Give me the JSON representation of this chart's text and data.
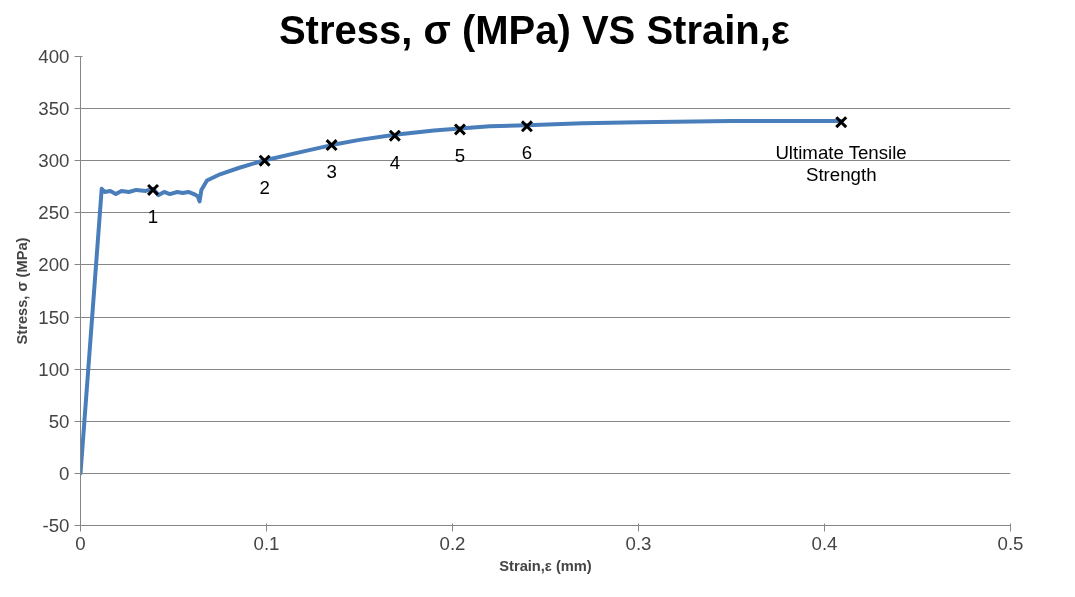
{
  "chart_data": {
    "type": "line",
    "title": "Stress, σ (MPa)  VS  Strain,ε",
    "xlabel": "Strain,ε (mm)",
    "ylabel": "Stress, σ (MPa)",
    "xlim": [
      0,
      0.5
    ],
    "ylim": [
      -50,
      400
    ],
    "xticks": [
      0,
      0.1,
      0.2,
      0.3,
      0.4,
      0.5
    ],
    "yticks": [
      -50,
      0,
      50,
      100,
      150,
      200,
      250,
      300,
      350,
      400
    ],
    "grid": "y",
    "line_style": "solid",
    "series": [
      {
        "color": "#4a7ebb",
        "marker": "none",
        "x": [
          0,
          0.0114,
          0.013,
          0.016,
          0.019,
          0.022,
          0.026,
          0.03,
          0.035,
          0.039,
          0.042,
          0.045,
          0.048,
          0.052,
          0.055,
          0.058,
          0.061,
          0.063,
          0.064,
          0.065,
          0.068,
          0.075,
          0.085,
          0.098,
          0.12,
          0.135,
          0.15,
          0.169,
          0.19,
          0.204,
          0.22,
          0.24,
          0.27,
          0.3,
          0.35,
          0.409
        ],
        "values": [
          0,
          273,
          270,
          271,
          268,
          271,
          270,
          272,
          271,
          273,
          267,
          270,
          268,
          270,
          269,
          270,
          268,
          266,
          261,
          272,
          281,
          287,
          293,
          300,
          309,
          315,
          320,
          325,
          329,
          331,
          333,
          334,
          336,
          337,
          338,
          338
        ]
      },
      {
        "type": "scatter",
        "color": "#000000",
        "marker": "cross",
        "x": [
          0.039,
          0.099,
          0.135,
          0.169,
          0.204,
          0.24,
          0.409
        ],
        "values": [
          272,
          300,
          315,
          324,
          330,
          333,
          337
        ]
      }
    ],
    "annotations": [
      {
        "text": "1",
        "x": 0.039,
        "y": 272
      },
      {
        "text": "2",
        "x": 0.099,
        "y": 300
      },
      {
        "text": "3",
        "x": 0.135,
        "y": 315
      },
      {
        "text": "4",
        "x": 0.169,
        "y": 324
      },
      {
        "text": "5",
        "x": 0.204,
        "y": 330
      },
      {
        "text": "6",
        "x": 0.24,
        "y": 333
      },
      {
        "text": "Ultimate Tensile\nStrength",
        "x": 0.409,
        "y": 337
      }
    ]
  }
}
